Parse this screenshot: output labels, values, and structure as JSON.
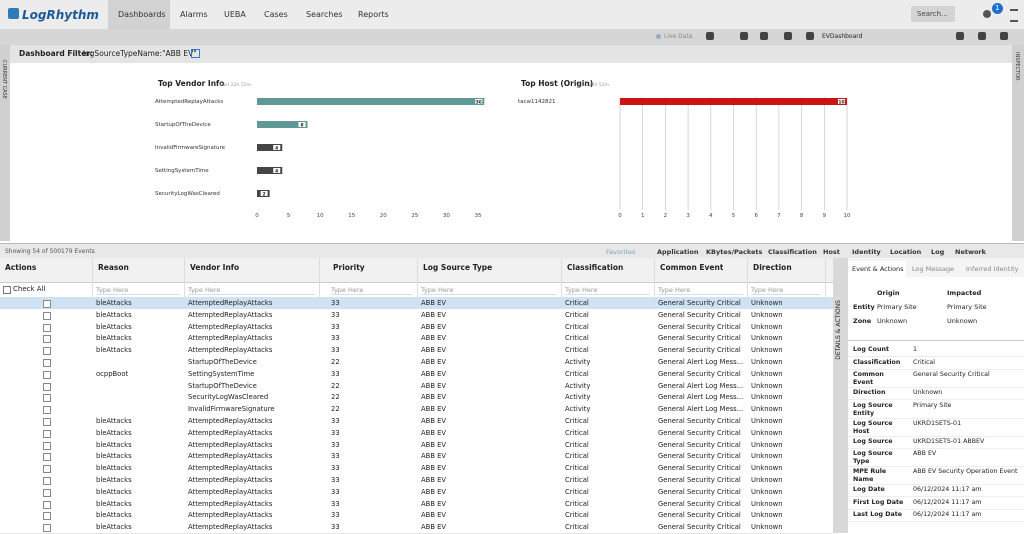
{
  "nav": {
    "logo": "LogRhythm",
    "tabs": [
      "Dashboards",
      "Alarms",
      "UEBA",
      "Cases",
      "Searches",
      "Reports"
    ],
    "search": "Search...",
    "badge": "1"
  },
  "toolbar": {
    "live": "Live Data",
    "dashboard": "EVDashboard",
    "left_side": "CURRENT CASE",
    "right_side": "INSPECTOR"
  },
  "filter": {
    "label": "Dashboard Filter:",
    "value": "logSourceTypeName:\"ABB EV\""
  },
  "widgets": [
    {
      "type": "bar",
      "title": "Top Vendor Info",
      "subtitle": "Last 22h 51m",
      "categories": [
        "AttemptedReplayAttacks",
        "StartupOfTheDevice",
        "InvalidFirmwareSignature",
        "SettingSystemTime",
        "SecurityLogWasCleared"
      ],
      "values": [
        36,
        8,
        4,
        4,
        2
      ],
      "colors": [
        "#5f9896",
        "#5f9896",
        "#454545",
        "#454545",
        "#454545"
      ],
      "xlim": [
        0,
        36
      ],
      "xticks": [
        0,
        5,
        10,
        15,
        20,
        25,
        30,
        35
      ],
      "grid": false
    },
    {
      "type": "bar",
      "title": "Top Host (Origin)",
      "subtitle": "Last 22h 51m",
      "categories": [
        "tacw1142821"
      ],
      "values": [
        10
      ],
      "colors": [
        "#cc1414"
      ],
      "xlim": [
        0,
        10
      ],
      "xticks": [
        0,
        1,
        2,
        3,
        4,
        5,
        6,
        7,
        8,
        9,
        10
      ],
      "grid": true
    }
  ],
  "events": {
    "summary": "Showing 54 of 500179 Events",
    "tabs": [
      "Favorites",
      "Application",
      "KBytes/Packets",
      "Classification",
      "Host",
      "Identity",
      "Location",
      "Log",
      "Network"
    ],
    "columns": [
      "Actions",
      "Reason",
      "Vendor Info",
      "Priority",
      "Log Source Type",
      "Classification",
      "Common Event",
      "Direction"
    ],
    "check_all": "Check All",
    "filter_placeholder": "Type Here",
    "rows": [
      [
        "bleAttacks",
        "AttemptedReplayAttacks",
        33,
        "ABB EV",
        "Critical",
        "General Security Critical",
        "Unknown"
      ],
      [
        "bleAttacks",
        "AttemptedReplayAttacks",
        33,
        "ABB EV",
        "Critical",
        "General Security Critical",
        "Unknown"
      ],
      [
        "bleAttacks",
        "AttemptedReplayAttacks",
        33,
        "ABB EV",
        "Critical",
        "General Security Critical",
        "Unknown"
      ],
      [
        "bleAttacks",
        "AttemptedReplayAttacks",
        33,
        "ABB EV",
        "Critical",
        "General Security Critical",
        "Unknown"
      ],
      [
        "bleAttacks",
        "AttemptedReplayAttacks",
        33,
        "ABB EV",
        "Critical",
        "General Security Critical",
        "Unknown"
      ],
      [
        null,
        "StartupOfTheDevice",
        22,
        "ABB EV",
        "Activity",
        "General Alert Log Mess...",
        "Unknown"
      ],
      [
        "ocppBoot",
        "SettingSystemTime",
        33,
        "ABB EV",
        "Critical",
        "General Security Critical",
        "Unknown"
      ],
      [
        null,
        "StartupOfTheDevice",
        22,
        "ABB EV",
        "Activity",
        "General Alert Log Mess...",
        "Unknown"
      ],
      [
        null,
        "SecurityLogWasCleared",
        22,
        "ABB EV",
        "Activity",
        "General Alert Log Mess...",
        "Unknown"
      ],
      [
        null,
        "InvalidFirmwareSignature",
        22,
        "ABB EV",
        "Activity",
        "General Alert Log Mess...",
        "Unknown"
      ],
      [
        "bleAttacks",
        "AttemptedReplayAttacks",
        33,
        "ABB EV",
        "Critical",
        "General Security Critical",
        "Unknown"
      ],
      [
        "bleAttacks",
        "AttemptedReplayAttacks",
        33,
        "ABB EV",
        "Critical",
        "General Security Critical",
        "Unknown"
      ],
      [
        "bleAttacks",
        "AttemptedReplayAttacks",
        33,
        "ABB EV",
        "Critical",
        "General Security Critical",
        "Unknown"
      ],
      [
        "bleAttacks",
        "AttemptedReplayAttacks",
        33,
        "ABB EV",
        "Critical",
        "General Security Critical",
        "Unknown"
      ],
      [
        "bleAttacks",
        "AttemptedReplayAttacks",
        33,
        "ABB EV",
        "Critical",
        "General Security Critical",
        "Unknown"
      ],
      [
        "bleAttacks",
        "AttemptedReplayAttacks",
        33,
        "ABB EV",
        "Critical",
        "General Security Critical",
        "Unknown"
      ],
      [
        "bleAttacks",
        "AttemptedReplayAttacks",
        33,
        "ABB EV",
        "Critical",
        "General Security Critical",
        "Unknown"
      ],
      [
        "bleAttacks",
        "AttemptedReplayAttacks",
        33,
        "ABB EV",
        "Critical",
        "General Security Critical",
        "Unknown"
      ],
      [
        "bleAttacks",
        "AttemptedReplayAttacks",
        33,
        "ABB EV",
        "Critical",
        "General Security Critical",
        "Unknown"
      ],
      [
        "bleAttacks",
        "AttemptedReplayAttacks",
        33,
        "ABB EV",
        "Critical",
        "General Security Critical",
        "Unknown"
      ]
    ]
  },
  "details": {
    "side_label": "DETAILS & ACTIONS",
    "tabs": [
      "Event & Actions",
      "Log Message",
      "Inferred Identity"
    ],
    "origin_header": "Origin",
    "impacted_header": "Impacted",
    "entity_rows": [
      [
        "Entity",
        "Primary Site",
        "Primary Site"
      ],
      [
        "Zone",
        "Unknown",
        "Unknown"
      ]
    ],
    "fields": [
      [
        "Log Count",
        "1"
      ],
      [
        "Classification",
        "Critical"
      ],
      [
        "Common Event",
        "General Security Critical"
      ],
      [
        "Direction",
        "Unknown"
      ],
      [
        "Log Source Entity",
        "Primary Site"
      ],
      [
        "Log Source Host",
        "UKRD1SETS-01"
      ],
      [
        "Log Source",
        "UKRD1SETS-01 ABBEV"
      ],
      [
        "Log Source Type",
        "ABB EV"
      ],
      [
        "MPE Rule Name",
        "ABB EV Security Operation Event"
      ],
      [
        "Log Date",
        "06/12/2024 11:17 am"
      ],
      [
        "First Log Date",
        "06/12/2024 11:17 am"
      ],
      [
        "Last Log Date",
        "06/12/2024 11:17 am"
      ]
    ]
  }
}
